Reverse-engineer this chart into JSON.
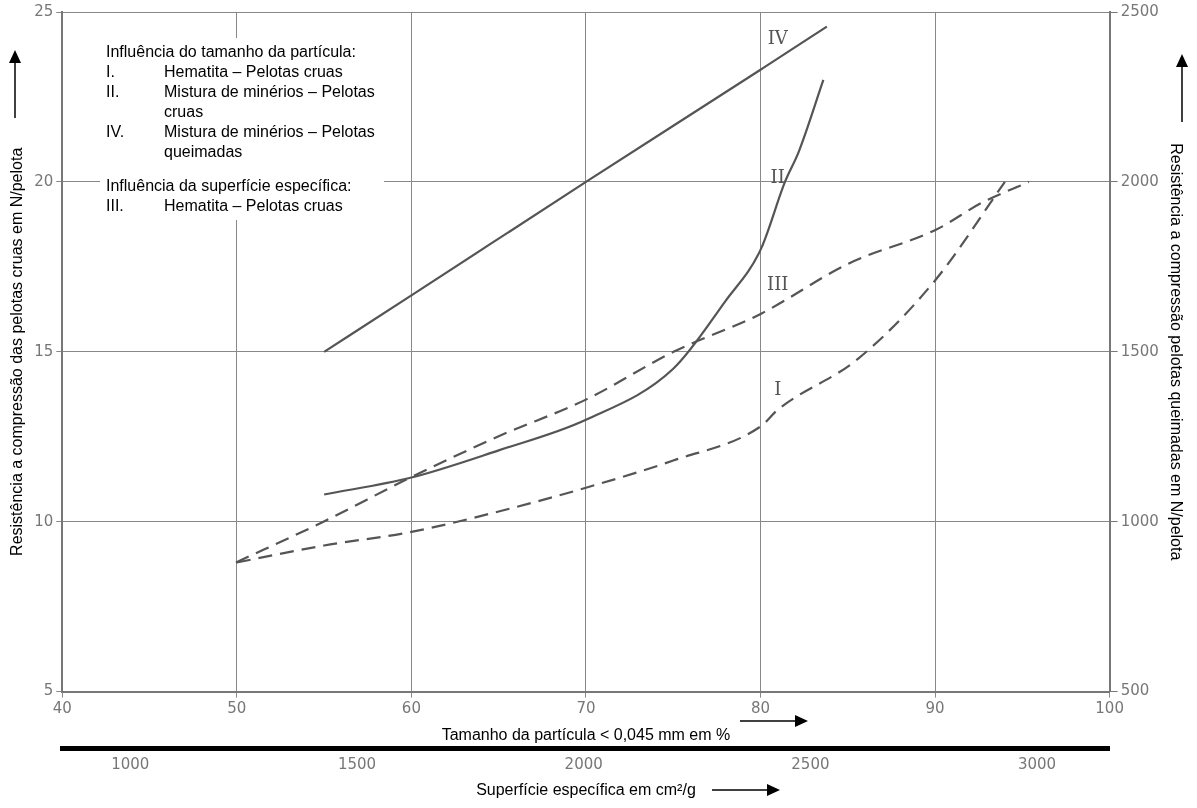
{
  "chart_data": {
    "type": "line",
    "xlabel": "Tamanho da partícula < 0,045 mm em %",
    "x2label": "Superfície específica em cm²/g",
    "ylabel": "Resistência a compressão das pelotas cruas em N/pelota",
    "y2label": "Resistência a compressão pelotas queimadas em N/pelota",
    "xlim": [
      40,
      100
    ],
    "xticks": [
      40,
      50,
      60,
      70,
      80,
      90,
      100
    ],
    "x2lim": [
      850,
      3160
    ],
    "x2ticks": [
      1000,
      1500,
      2000,
      2500,
      3000
    ],
    "ylim": [
      5,
      25
    ],
    "yticks": [
      5,
      10,
      15,
      20,
      25
    ],
    "y2lim": [
      500,
      2500
    ],
    "y2ticks": [
      500,
      1000,
      1500,
      2000,
      2500
    ],
    "grid": true,
    "legend": false,
    "marker": "none",
    "series": [
      {
        "name": "I",
        "color": "#555555",
        "line_style": "dashed",
        "x": [
          50,
          55,
          60,
          65,
          70,
          75,
          80,
          81,
          85.6,
          90,
          94
        ],
        "values": [
          8.8,
          9.3,
          9.7,
          10.3,
          11.0,
          11.8,
          12.8,
          13.3,
          14.8,
          17.1,
          20
        ]
      },
      {
        "name": "II",
        "color": "#555555",
        "line_style": "solid",
        "x": [
          55,
          60,
          65,
          70,
          75,
          78,
          80,
          81.4,
          82.2,
          83.6
        ],
        "values": [
          10.8,
          11.3,
          12.1,
          13.0,
          14.5,
          16.5,
          18.0,
          20.0,
          20.9,
          23.0
        ]
      },
      {
        "name": "III",
        "color": "#555555",
        "line_style": "dashed",
        "axis": "x2",
        "x": [
          1233,
          1426,
          1618,
          1810,
          2006,
          2198,
          2388,
          2585,
          2778,
          2880,
          2982
        ],
        "values": [
          8.8,
          10.0,
          11.3,
          12.5,
          13.6,
          15.0,
          16.1,
          17.6,
          18.6,
          19.4,
          20
        ]
      },
      {
        "name": "IV",
        "color": "#555555",
        "line_style": "solid",
        "axis": "y2",
        "x": [
          55,
          60,
          70,
          80,
          83.8
        ],
        "values": [
          1500,
          1666,
          2000,
          2330,
          2457
        ]
      }
    ],
    "annotations": [
      "Influência do tamanho da partícula:",
      "I. Hematita – Pelotas cruas",
      "II. Mistura de minérios – Pelotas cruas",
      "IV. Mistura de minérios – Pelotas queimadas",
      "Influência da superfície específica:",
      "III. Hematita – Pelotas cruas"
    ]
  }
}
